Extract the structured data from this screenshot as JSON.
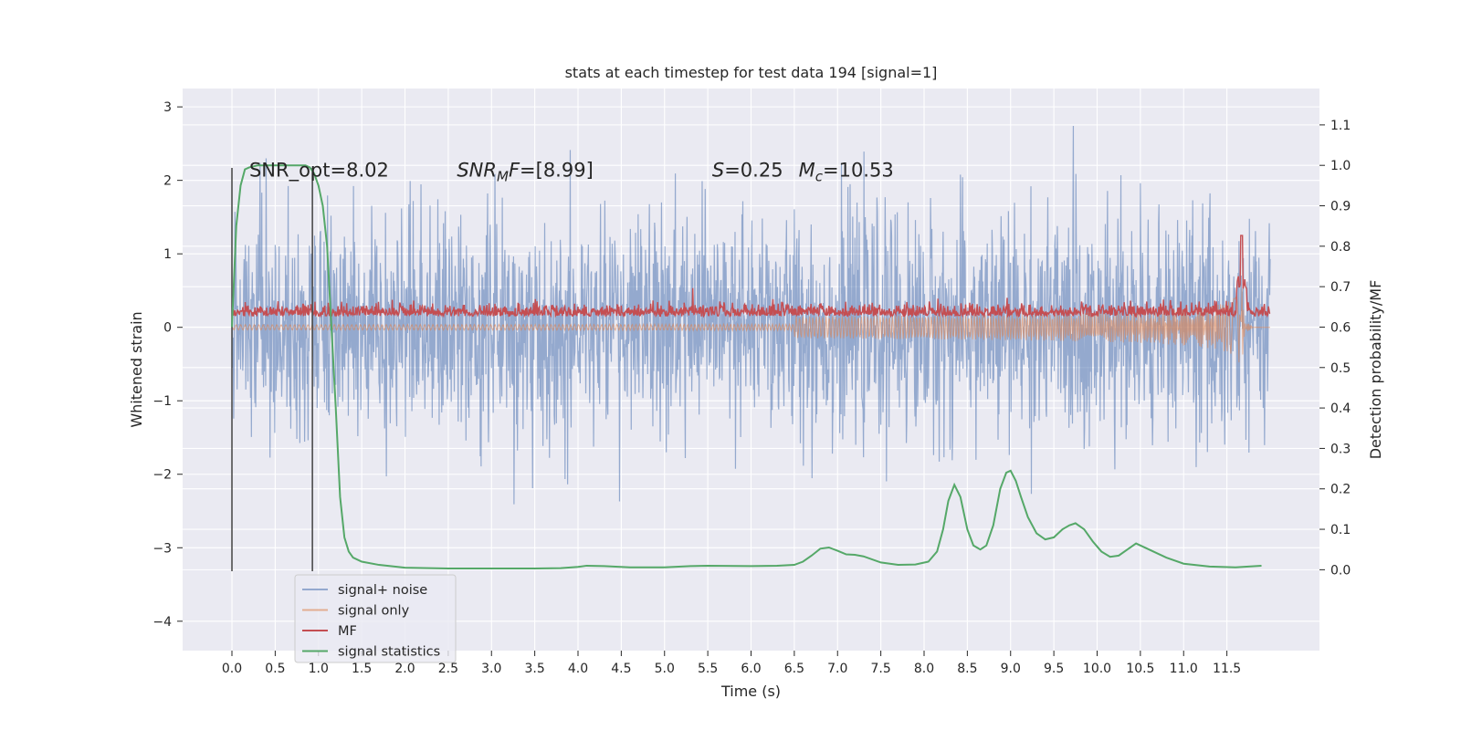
{
  "chart_data": {
    "type": "line",
    "title": "stats at each timestep for test data 194 [signal=1]",
    "xlabel": "Time (s)",
    "ylabel": "Whitened strain",
    "y2label": "Detection probability/MF",
    "xlim": [
      -0.57,
      12.57
    ],
    "ylim": [
      -4.4,
      3.25
    ],
    "y2lim": [
      -0.2,
      1.19
    ],
    "xticks": [
      0.0,
      0.5,
      1.0,
      1.5,
      2.0,
      2.5,
      3.0,
      3.5,
      4.0,
      4.5,
      5.0,
      5.5,
      6.0,
      6.5,
      7.0,
      7.5,
      8.0,
      8.5,
      9.0,
      9.5,
      10.0,
      10.5,
      11.0,
      11.5
    ],
    "yticks": [
      -4,
      -3,
      -2,
      -1,
      0,
      1,
      2,
      3
    ],
    "y2ticks": [
      0.0,
      0.1,
      0.2,
      0.3,
      0.4,
      0.5,
      0.6,
      0.7,
      0.8,
      0.9,
      1.0,
      1.1
    ],
    "grid": true,
    "legend_position": "lower-left",
    "annotations": [
      {
        "text": "SNR_opt=8.02",
        "x": 0.2,
        "y": 2.15
      },
      {
        "text": "SNR_MF=[8.99]",
        "x": 2.6,
        "y": 2.15
      },
      {
        "text": "S=0.25",
        "x": 5.55,
        "y": 2.15
      },
      {
        "text": "M_c=10.53",
        "x": 6.55,
        "y": 2.15
      }
    ],
    "vlines": [
      {
        "x": 0.0,
        "ymin": -3.32,
        "ymax": 2.17
      },
      {
        "x": 0.93,
        "ymin": -3.32,
        "ymax": 2.17
      }
    ],
    "series": [
      {
        "name": "signal+ noise",
        "color": "#4c72b0",
        "noise_amplitude": 0.75,
        "max_abs": 2.93,
        "x_range": [
          0.0,
          12.0
        ]
      },
      {
        "name": "signal only",
        "color": "#dd8452",
        "chirp": {
          "t_merge": 11.67,
          "amp_max": 0.6
        }
      },
      {
        "name": "MF",
        "color": "#c44e52",
        "baseline": 0.15,
        "spike": {
          "x": 11.67,
          "y": 1.25
        }
      },
      {
        "name": "signal statistics",
        "color": "#55a868",
        "axis": "right",
        "x": [
          0.0,
          0.05,
          0.1,
          0.15,
          0.2,
          0.3,
          0.5,
          0.7,
          0.8,
          0.85,
          0.9,
          0.95,
          1.0,
          1.05,
          1.1,
          1.15,
          1.2,
          1.25,
          1.3,
          1.35,
          1.4,
          1.5,
          1.7,
          2.0,
          2.5,
          3.0,
          3.5,
          3.8,
          4.0,
          4.1,
          4.3,
          4.6,
          5.0,
          5.3,
          5.5,
          6.0,
          6.3,
          6.5,
          6.6,
          6.7,
          6.8,
          6.9,
          7.0,
          7.1,
          7.2,
          7.3,
          7.5,
          7.7,
          7.9,
          8.05,
          8.15,
          8.22,
          8.28,
          8.35,
          8.42,
          8.5,
          8.57,
          8.65,
          8.72,
          8.8,
          8.88,
          8.95,
          9.0,
          9.06,
          9.12,
          9.2,
          9.3,
          9.4,
          9.5,
          9.6,
          9.68,
          9.75,
          9.85,
          9.95,
          10.05,
          10.15,
          10.25,
          10.35,
          10.45,
          10.6,
          10.8,
          11.0,
          11.3,
          11.6,
          11.9
        ],
        "values": [
          0.6,
          0.85,
          0.95,
          0.99,
          0.995,
          1.0,
          1.0,
          1.0,
          1.0,
          1.0,
          0.995,
          0.98,
          0.95,
          0.9,
          0.8,
          0.6,
          0.4,
          0.18,
          0.08,
          0.045,
          0.03,
          0.02,
          0.012,
          0.005,
          0.003,
          0.003,
          0.003,
          0.004,
          0.007,
          0.01,
          0.009,
          0.006,
          0.006,
          0.009,
          0.01,
          0.009,
          0.01,
          0.012,
          0.02,
          0.035,
          0.052,
          0.055,
          0.047,
          0.038,
          0.037,
          0.033,
          0.018,
          0.012,
          0.013,
          0.02,
          0.045,
          0.1,
          0.17,
          0.21,
          0.18,
          0.1,
          0.06,
          0.05,
          0.06,
          0.11,
          0.2,
          0.24,
          0.245,
          0.22,
          0.18,
          0.13,
          0.09,
          0.075,
          0.08,
          0.1,
          0.11,
          0.115,
          0.1,
          0.07,
          0.045,
          0.032,
          0.035,
          0.05,
          0.065,
          0.05,
          0.03,
          0.015,
          0.008,
          0.006,
          0.01
        ]
      }
    ]
  }
}
